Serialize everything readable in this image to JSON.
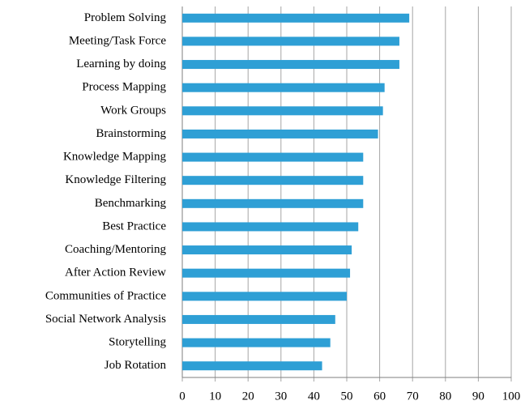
{
  "chart_data": {
    "type": "barh",
    "categories": [
      "Problem Solving",
      "Meeting/Task Force",
      "Learning by doing",
      "Process Mapping",
      "Work Groups",
      "Brainstorming",
      "Knowledge Mapping",
      "Knowledge Filtering",
      "Benchmarking",
      "Best Practice",
      "Coaching/Mentoring",
      "After Action Review",
      "Communities of Practice",
      "Social Network Analysis",
      "Storytelling",
      "Job Rotation"
    ],
    "values": [
      69,
      66,
      66,
      61.5,
      61,
      59.5,
      55,
      55,
      55,
      53.5,
      51.5,
      51,
      50,
      46.5,
      45,
      42.5
    ],
    "color": "#2e9fd5",
    "xlim": [
      0,
      100
    ],
    "xticks": [
      0,
      10,
      20,
      30,
      40,
      50,
      60,
      70,
      80,
      90,
      100
    ],
    "grid": true
  }
}
